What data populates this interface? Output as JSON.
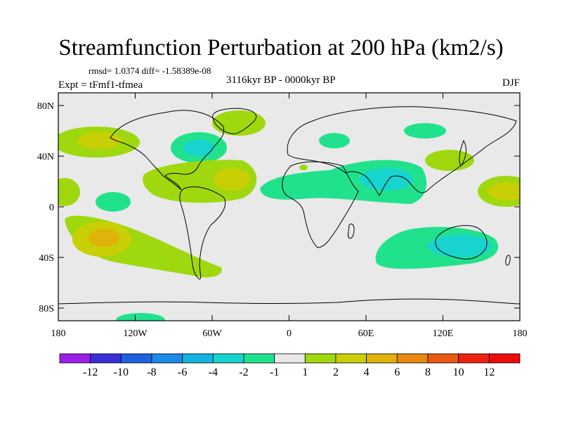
{
  "header": {
    "title": "Streamfunction Perturbation at 200 hPa (km2/s)",
    "stats": "rmsd= 1.0374 diff= -1.58389e-08",
    "experiment": "Expt = tFmf1-tfmea",
    "period": "3116kyr BP - 0000kyr BP",
    "season": "DJF"
  },
  "chart_data": {
    "type": "heatmap",
    "projection": "cylindrical equidistant",
    "title": "Streamfunction Perturbation at 200 hPa (km2/s)",
    "x_range": [
      -180,
      180
    ],
    "y_range": [
      -90,
      90
    ],
    "x_ticks": [
      {
        "value": -180,
        "label": "180"
      },
      {
        "value": -120,
        "label": "120W"
      },
      {
        "value": -60,
        "label": "60W"
      },
      {
        "value": 0,
        "label": "0"
      },
      {
        "value": 60,
        "label": "60E"
      },
      {
        "value": 120,
        "label": "120E"
      },
      {
        "value": 180,
        "label": "180"
      }
    ],
    "y_ticks": [
      {
        "value": 80,
        "label": "80N"
      },
      {
        "value": 40,
        "label": "40N"
      },
      {
        "value": 0,
        "label": "0"
      },
      {
        "value": -40,
        "label": "40S"
      },
      {
        "value": -80,
        "label": "80S"
      }
    ],
    "colorbar": {
      "labels": [
        "-12",
        "-10",
        "-8",
        "-6",
        "-4",
        "-2",
        "-1",
        "1",
        "2",
        "4",
        "6",
        "8",
        "10",
        "12"
      ],
      "colors": [
        "#9b1fe8",
        "#3b2fd8",
        "#1f60e0",
        "#1a8ae6",
        "#12b4e0",
        "#18d4cf",
        "#21e28c",
        "#e9e9e9",
        "#9fd80e",
        "#c8d005",
        "#e0b20a",
        "#e8880e",
        "#ea5812",
        "#f02010",
        "#ee0c0c"
      ]
    },
    "anomalies": [
      {
        "name": "North Pacific positive",
        "lon": -150,
        "lat": 50,
        "peak": 4
      },
      {
        "name": "Tropical East Pacific positive",
        "lon": -178,
        "lat": 12,
        "peak": 2
      },
      {
        "name": "South Pacific positive",
        "lon": -140,
        "lat": -22,
        "peak": 6
      },
      {
        "name": "South America positive",
        "lon": -58,
        "lat": -45,
        "peak": 2
      },
      {
        "name": "Tropical Atlantic positive",
        "lon": -50,
        "lat": 22,
        "peak": 4
      },
      {
        "name": "Greenland positive",
        "lon": -40,
        "lat": 70,
        "peak": 2
      },
      {
        "name": "East Asia positive",
        "lon": 127,
        "lat": 40,
        "peak": 2
      },
      {
        "name": "West Pacific positive",
        "lon": 170,
        "lat": 18,
        "peak": 4
      },
      {
        "name": "Eastern North America negative",
        "lon": -75,
        "lat": 45,
        "peak": -2
      },
      {
        "name": "Central Pacific negative",
        "lon": -135,
        "lat": 5,
        "peak": -2
      },
      {
        "name": "Europe negative",
        "lon": 25,
        "lat": 50,
        "peak": -2
      },
      {
        "name": "Siberia negative",
        "lon": 95,
        "lat": 60,
        "peak": -2
      },
      {
        "name": "Africa-Asia negative",
        "lon": 80,
        "lat": 20,
        "peak": -4
      },
      {
        "name": "Australia negative",
        "lon": 130,
        "lat": -25,
        "peak": -4
      }
    ]
  }
}
